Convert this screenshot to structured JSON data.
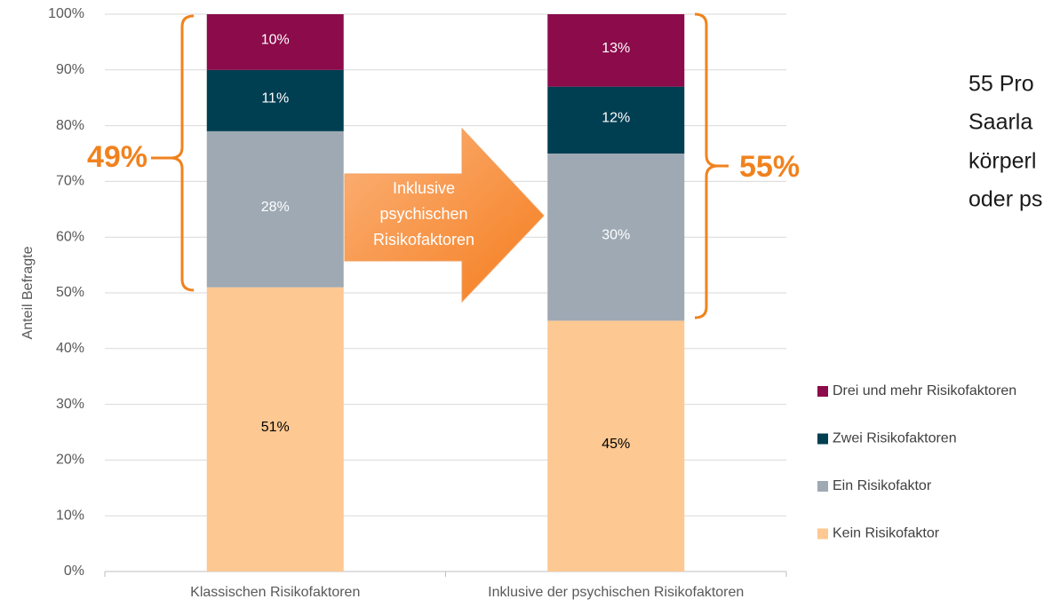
{
  "chart_data": {
    "type": "bar",
    "stacked": true,
    "ylabel": "Anteil Befragte",
    "categories": [
      "Klassischen Risikofaktoren",
      "Inklusive der psychischen Risikofaktoren"
    ],
    "series": [
      {
        "name": "Kein Risikofaktor",
        "color": "#fdc891",
        "label_color": "#000000",
        "values": [
          51,
          45
        ],
        "value_labels": [
          "51%",
          "45%"
        ]
      },
      {
        "name": "Ein Risikofaktor",
        "color": "#9ea9b3",
        "label_color": "#ffffff",
        "values": [
          28,
          30
        ],
        "value_labels": [
          "28%",
          "30%"
        ]
      },
      {
        "name": "Zwei Risikofaktoren",
        "color": "#003e52",
        "label_color": "#ffffff",
        "values": [
          11,
          12
        ],
        "value_labels": [
          "11%",
          "12%"
        ]
      },
      {
        "name": "Drei und mehr Risikofaktoren",
        "color": "#8c0b4b",
        "label_color": "#ffffff",
        "values": [
          10,
          13
        ],
        "value_labels": [
          "10%",
          "13%"
        ]
      }
    ],
    "ylim": [
      0,
      100
    ],
    "yticks": [
      {
        "value": 0,
        "label": "0%"
      },
      {
        "value": 10,
        "label": "10%"
      },
      {
        "value": 20,
        "label": "20%"
      },
      {
        "value": 30,
        "label": "30%"
      },
      {
        "value": 40,
        "label": "40%"
      },
      {
        "value": 50,
        "label": "50%"
      },
      {
        "value": 60,
        "label": "60%"
      },
      {
        "value": 70,
        "label": "70%"
      },
      {
        "value": 80,
        "label": "80%"
      },
      {
        "value": 90,
        "label": "90%"
      },
      {
        "value": 100,
        "label": "100%"
      }
    ],
    "grid": true,
    "legend": "right",
    "annotations": [
      "49%",
      "55%"
    ],
    "arrow_text": [
      "Inklusive",
      "psychischen",
      "Risikofaktoren"
    ],
    "side_text": [
      "55 Pro",
      "Saarla",
      "körperl",
      "oder ps"
    ]
  }
}
